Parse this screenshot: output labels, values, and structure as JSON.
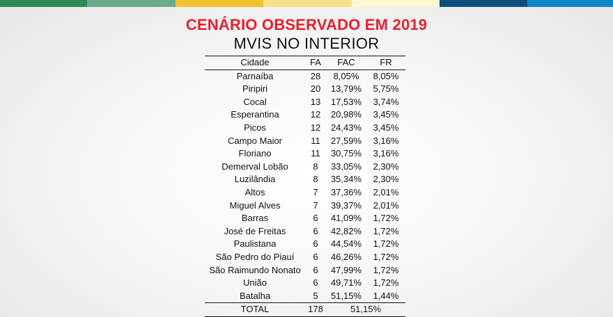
{
  "colors": {
    "top_bar": [
      "#2e8b57",
      "#6aab8e",
      "#f2c12e",
      "#f7e08a",
      "#fdf6d0",
      "#0d4f7a",
      "#0f86c8"
    ],
    "title": "#e8202a"
  },
  "title": "CENÁRIO OBSERVADO EM 2019",
  "subtitle": "MVIS NO INTERIOR",
  "table": {
    "headers": {
      "city": "Cidade",
      "fa": "FA",
      "fac": "FAC",
      "fr": "FR"
    },
    "rows": [
      {
        "city": "Parnaíba",
        "fa": "28",
        "fac": "8,05%",
        "fr": "8,05%"
      },
      {
        "city": "Piripiri",
        "fa": "20",
        "fac": "13,79%",
        "fr": "5,75%"
      },
      {
        "city": "Cocal",
        "fa": "13",
        "fac": "17,53%",
        "fr": "3,74%"
      },
      {
        "city": "Esperantina",
        "fa": "12",
        "fac": "20,98%",
        "fr": "3,45%"
      },
      {
        "city": "Picos",
        "fa": "12",
        "fac": "24,43%",
        "fr": "3,45%"
      },
      {
        "city": "Campo Maior",
        "fa": "11",
        "fac": "27,59%",
        "fr": "3,16%"
      },
      {
        "city": "Floriano",
        "fa": "11",
        "fac": "30,75%",
        "fr": "3,16%"
      },
      {
        "city": "Demerval Lobão",
        "fa": "8",
        "fac": "33,05%",
        "fr": "2,30%"
      },
      {
        "city": "Luzilândia",
        "fa": "8",
        "fac": "35,34%",
        "fr": "2,30%"
      },
      {
        "city": "Altos",
        "fa": "7",
        "fac": "37,36%",
        "fr": "2,01%"
      },
      {
        "city": "Miguel Alves",
        "fa": "7",
        "fac": "39,37%",
        "fr": "2,01%"
      },
      {
        "city": "Barras",
        "fa": "6",
        "fac": "41,09%",
        "fr": "1,72%"
      },
      {
        "city": "José de Freitas",
        "fa": "6",
        "fac": "42,82%",
        "fr": "1,72%"
      },
      {
        "city": "Paulistana",
        "fa": "6",
        "fac": "44,54%",
        "fr": "1,72%"
      },
      {
        "city": "São Pedro do Piauí",
        "fa": "6",
        "fac": "46,26%",
        "fr": "1,72%"
      },
      {
        "city": "São Raimundo Nonato",
        "fa": "6",
        "fac": "47,99%",
        "fr": "1,72%"
      },
      {
        "city": "União",
        "fa": "6",
        "fac": "49,71%",
        "fr": "1,72%"
      },
      {
        "city": "Batalha",
        "fa": "5",
        "fac": "51,15%",
        "fr": "1,44%"
      }
    ],
    "total": {
      "label": "TOTAL",
      "fa": "178",
      "value": "51,15%"
    }
  }
}
